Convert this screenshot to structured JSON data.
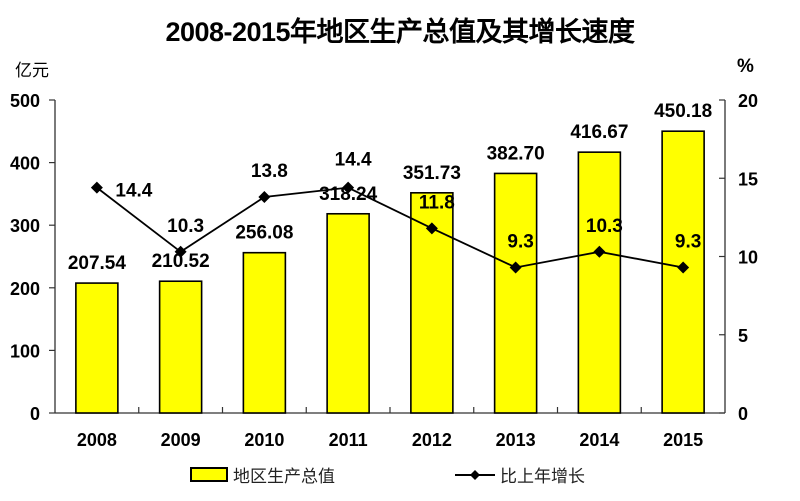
{
  "chart_data": {
    "type": "bar",
    "title": "2008-2015年地区生产总值及其增长速度",
    "categories": [
      "2008",
      "2009",
      "2010",
      "2011",
      "2012",
      "2013",
      "2014",
      "2015"
    ],
    "series": [
      {
        "name": "地区生产总值",
        "type": "bar",
        "axis": "left",
        "color": "#ffff00",
        "values": [
          207.54,
          210.52,
          256.08,
          318.24,
          351.73,
          382.7,
          416.67,
          450.18
        ],
        "labels": [
          "207.54",
          "210.52",
          "256.08",
          "318.24",
          "351.73",
          "382.70",
          "416.67",
          "450.18"
        ]
      },
      {
        "name": "比上年增长",
        "type": "line",
        "axis": "right",
        "color": "#000000",
        "marker": "diamond",
        "values": [
          14.4,
          10.3,
          13.8,
          14.4,
          11.8,
          9.3,
          10.3,
          9.3
        ],
        "labels": [
          "14.4",
          "10.3",
          "13.8",
          "14.4",
          "11.8",
          "9.3",
          "10.3",
          "9.3"
        ]
      }
    ],
    "left_axis": {
      "label": "亿元",
      "ylim": [
        0,
        500
      ],
      "ticks": [
        "0",
        "100",
        "200",
        "300",
        "400",
        "500"
      ]
    },
    "right_axis": {
      "label": "%",
      "ylim": [
        0,
        20
      ],
      "ticks": [
        "0",
        "5",
        "10",
        "15",
        "20"
      ]
    },
    "xlabel": "",
    "grid": false,
    "legend_position": "bottom"
  },
  "header": {
    "title": "2008-2015年地区生产总值及其增长速度"
  },
  "axes": {
    "left_unit": "亿元",
    "right_unit": "%"
  },
  "legend": {
    "bar_label": "地区生产总值",
    "line_label": "比上年增长"
  }
}
